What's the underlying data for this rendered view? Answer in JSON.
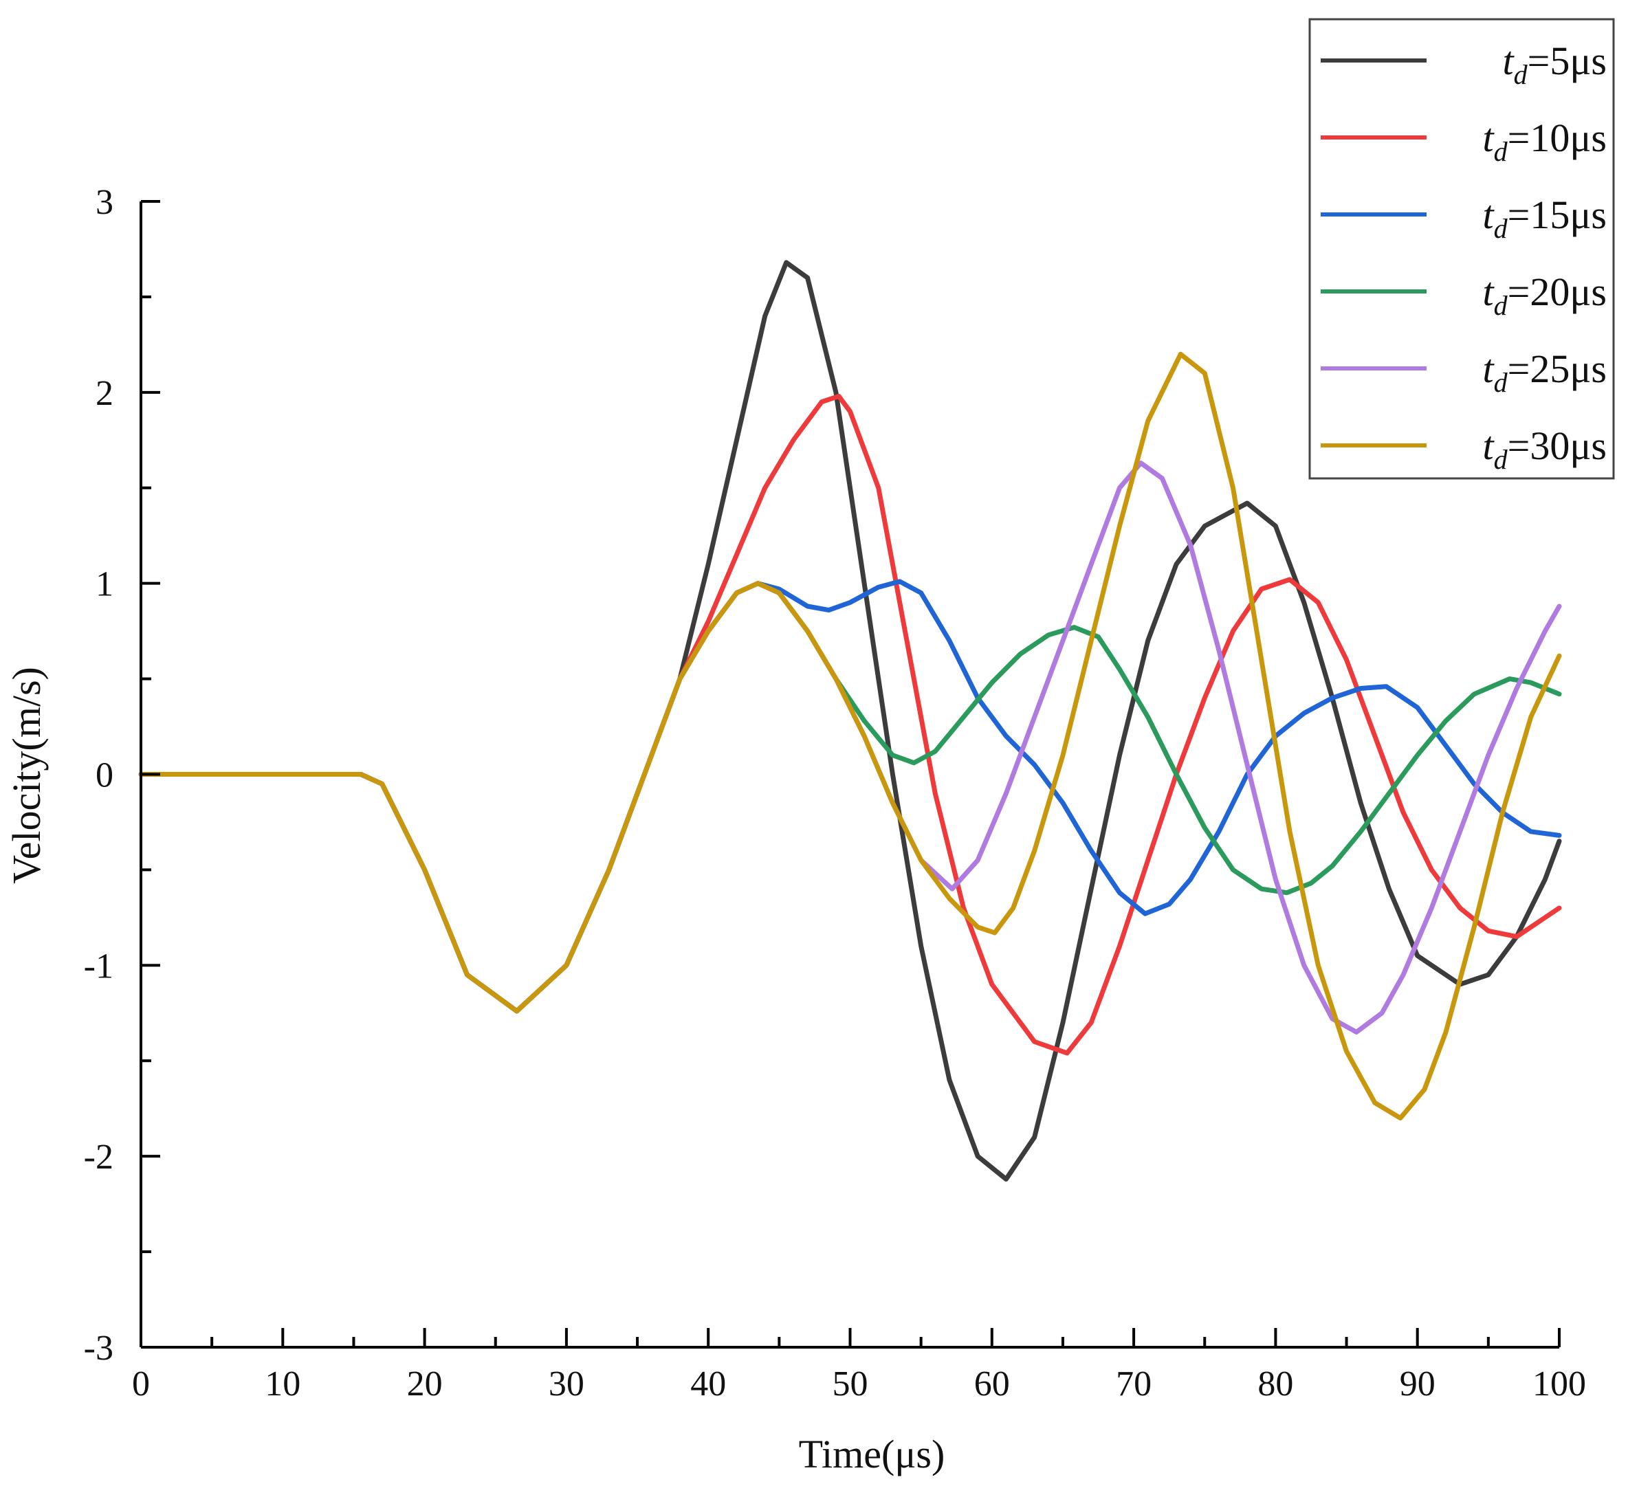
{
  "chart_data": {
    "type": "line",
    "title": "",
    "xlabel": "Time(μs)",
    "ylabel": "Velocity(m/s)",
    "xlim": [
      0,
      100
    ],
    "ylim": [
      -3,
      3
    ],
    "xticks": [
      0,
      10,
      20,
      30,
      40,
      50,
      60,
      70,
      80,
      90,
      100
    ],
    "xtick_labels": [
      "0",
      "10",
      "20",
      "30",
      "40",
      "50",
      "60",
      "70",
      "80",
      "90",
      "100"
    ],
    "yticks": [
      -3,
      -2,
      -1,
      0,
      1,
      2,
      3
    ],
    "ytick_labels": [
      "-3",
      "-2",
      "-1",
      "0",
      "1",
      "2",
      "3"
    ],
    "grid": false,
    "legend_position": "top-right",
    "series": [
      {
        "name": "td=5μs",
        "legend_main": "t",
        "legend_sub": "d",
        "legend_rest": "=5μs",
        "color": "#3c3c3c",
        "points": [
          [
            0,
            0
          ],
          [
            15.5,
            0
          ],
          [
            17,
            -0.05
          ],
          [
            20,
            -0.5
          ],
          [
            23,
            -1.05
          ],
          [
            26.5,
            -1.24
          ],
          [
            30,
            -1.0
          ],
          [
            33,
            -0.5
          ],
          [
            36,
            0.1
          ],
          [
            38,
            0.5
          ],
          [
            40,
            1.1
          ],
          [
            42,
            1.75
          ],
          [
            44,
            2.4
          ],
          [
            45.5,
            2.68
          ],
          [
            47,
            2.6
          ],
          [
            49,
            2.0
          ],
          [
            51,
            1.0
          ],
          [
            53,
            0
          ],
          [
            55,
            -0.9
          ],
          [
            57,
            -1.6
          ],
          [
            59,
            -2.0
          ],
          [
            61,
            -2.12
          ],
          [
            63,
            -1.9
          ],
          [
            65,
            -1.3
          ],
          [
            67,
            -0.6
          ],
          [
            69,
            0.1
          ],
          [
            71,
            0.7
          ],
          [
            73,
            1.1
          ],
          [
            75,
            1.3
          ],
          [
            78,
            1.42
          ],
          [
            80,
            1.3
          ],
          [
            82,
            0.9
          ],
          [
            84,
            0.4
          ],
          [
            86,
            -0.15
          ],
          [
            88,
            -0.6
          ],
          [
            90,
            -0.95
          ],
          [
            93,
            -1.1
          ],
          [
            95,
            -1.05
          ],
          [
            97,
            -0.85
          ],
          [
            99,
            -0.55
          ],
          [
            100,
            -0.35
          ]
        ]
      },
      {
        "name": "td=10μs",
        "legend_main": "t",
        "legend_sub": "d",
        "legend_rest": "=10μs",
        "color": "#ef3a3c",
        "points": [
          [
            0,
            0
          ],
          [
            15.5,
            0
          ],
          [
            17,
            -0.05
          ],
          [
            20,
            -0.5
          ],
          [
            23,
            -1.05
          ],
          [
            26.5,
            -1.24
          ],
          [
            30,
            -1.0
          ],
          [
            33,
            -0.5
          ],
          [
            36,
            0.1
          ],
          [
            38,
            0.5
          ],
          [
            40,
            0.8
          ],
          [
            42,
            1.15
          ],
          [
            44,
            1.5
          ],
          [
            46,
            1.75
          ],
          [
            48,
            1.95
          ],
          [
            49.2,
            1.98
          ],
          [
            50,
            1.9
          ],
          [
            52,
            1.5
          ],
          [
            54,
            0.7
          ],
          [
            56,
            -0.1
          ],
          [
            58,
            -0.7
          ],
          [
            60,
            -1.1
          ],
          [
            63,
            -1.4
          ],
          [
            65.3,
            -1.46
          ],
          [
            67,
            -1.3
          ],
          [
            69,
            -0.9
          ],
          [
            71,
            -0.45
          ],
          [
            73,
            0
          ],
          [
            75,
            0.4
          ],
          [
            77,
            0.75
          ],
          [
            79,
            0.97
          ],
          [
            81,
            1.02
          ],
          [
            83,
            0.9
          ],
          [
            85,
            0.6
          ],
          [
            87,
            0.2
          ],
          [
            89,
            -0.2
          ],
          [
            91,
            -0.5
          ],
          [
            93,
            -0.7
          ],
          [
            95,
            -0.82
          ],
          [
            97,
            -0.85
          ],
          [
            99,
            -0.75
          ],
          [
            100,
            -0.7
          ]
        ]
      },
      {
        "name": "td=15μs",
        "legend_main": "t",
        "legend_sub": "d",
        "legend_rest": "=15μs",
        "color": "#1f65d6",
        "points": [
          [
            0,
            0
          ],
          [
            15.5,
            0
          ],
          [
            17,
            -0.05
          ],
          [
            20,
            -0.5
          ],
          [
            23,
            -1.05
          ],
          [
            26.5,
            -1.24
          ],
          [
            30,
            -1.0
          ],
          [
            33,
            -0.5
          ],
          [
            36,
            0.1
          ],
          [
            38,
            0.5
          ],
          [
            40,
            0.75
          ],
          [
            42,
            0.95
          ],
          [
            43.5,
            1.0
          ],
          [
            45,
            0.97
          ],
          [
            47,
            0.88
          ],
          [
            48.5,
            0.86
          ],
          [
            50,
            0.9
          ],
          [
            52,
            0.98
          ],
          [
            53.5,
            1.01
          ],
          [
            55,
            0.95
          ],
          [
            57,
            0.7
          ],
          [
            59,
            0.4
          ],
          [
            61,
            0.2
          ],
          [
            63,
            0.05
          ],
          [
            65,
            -0.15
          ],
          [
            67,
            -0.4
          ],
          [
            69,
            -0.62
          ],
          [
            70.8,
            -0.73
          ],
          [
            72.5,
            -0.68
          ],
          [
            74,
            -0.55
          ],
          [
            76,
            -0.3
          ],
          [
            78,
            0
          ],
          [
            80,
            0.2
          ],
          [
            82,
            0.32
          ],
          [
            84,
            0.4
          ],
          [
            86,
            0.45
          ],
          [
            87.8,
            0.46
          ],
          [
            90,
            0.35
          ],
          [
            92,
            0.15
          ],
          [
            94,
            -0.05
          ],
          [
            96,
            -0.2
          ],
          [
            98,
            -0.3
          ],
          [
            100,
            -0.32
          ]
        ]
      },
      {
        "name": "td=20μs",
        "legend_main": "t",
        "legend_sub": "d",
        "legend_rest": "=20μs",
        "color": "#2a9b5c",
        "points": [
          [
            0,
            0
          ],
          [
            15.5,
            0
          ],
          [
            17,
            -0.05
          ],
          [
            20,
            -0.5
          ],
          [
            23,
            -1.05
          ],
          [
            26.5,
            -1.24
          ],
          [
            30,
            -1.0
          ],
          [
            33,
            -0.5
          ],
          [
            36,
            0.1
          ],
          [
            38,
            0.5
          ],
          [
            40,
            0.75
          ],
          [
            42,
            0.95
          ],
          [
            43.5,
            1.0
          ],
          [
            45,
            0.95
          ],
          [
            47,
            0.75
          ],
          [
            49,
            0.5
          ],
          [
            51,
            0.28
          ],
          [
            53,
            0.1
          ],
          [
            54.5,
            0.06
          ],
          [
            56,
            0.12
          ],
          [
            58,
            0.3
          ],
          [
            60,
            0.48
          ],
          [
            62,
            0.63
          ],
          [
            64,
            0.73
          ],
          [
            65.8,
            0.77
          ],
          [
            67.5,
            0.72
          ],
          [
            69,
            0.55
          ],
          [
            71,
            0.3
          ],
          [
            73,
            0
          ],
          [
            75,
            -0.28
          ],
          [
            77,
            -0.5
          ],
          [
            79,
            -0.6
          ],
          [
            80.8,
            -0.62
          ],
          [
            82.5,
            -0.57
          ],
          [
            84,
            -0.48
          ],
          [
            86,
            -0.3
          ],
          [
            88,
            -0.1
          ],
          [
            90,
            0.1
          ],
          [
            92,
            0.28
          ],
          [
            94,
            0.42
          ],
          [
            96.5,
            0.5
          ],
          [
            98,
            0.48
          ],
          [
            100,
            0.42
          ]
        ]
      },
      {
        "name": "td=25μs",
        "legend_main": "t",
        "legend_sub": "d",
        "legend_rest": "=25μs",
        "color": "#b07be0",
        "points": [
          [
            0,
            0
          ],
          [
            15.5,
            0
          ],
          [
            17,
            -0.05
          ],
          [
            20,
            -0.5
          ],
          [
            23,
            -1.05
          ],
          [
            26.5,
            -1.24
          ],
          [
            30,
            -1.0
          ],
          [
            33,
            -0.5
          ],
          [
            36,
            0.1
          ],
          [
            38,
            0.5
          ],
          [
            40,
            0.75
          ],
          [
            42,
            0.95
          ],
          [
            43.5,
            1.0
          ],
          [
            45,
            0.95
          ],
          [
            47,
            0.75
          ],
          [
            49,
            0.5
          ],
          [
            51,
            0.2
          ],
          [
            53,
            -0.15
          ],
          [
            55,
            -0.45
          ],
          [
            57.2,
            -0.6
          ],
          [
            59,
            -0.45
          ],
          [
            61,
            -0.1
          ],
          [
            63,
            0.3
          ],
          [
            65,
            0.7
          ],
          [
            67,
            1.1
          ],
          [
            69,
            1.5
          ],
          [
            70.5,
            1.63
          ],
          [
            72,
            1.55
          ],
          [
            74,
            1.2
          ],
          [
            76,
            0.65
          ],
          [
            78,
            0.05
          ],
          [
            80,
            -0.55
          ],
          [
            82,
            -1.0
          ],
          [
            84,
            -1.28
          ],
          [
            85.7,
            -1.35
          ],
          [
            87.5,
            -1.25
          ],
          [
            89,
            -1.05
          ],
          [
            91,
            -0.7
          ],
          [
            93,
            -0.3
          ],
          [
            95,
            0.1
          ],
          [
            97,
            0.45
          ],
          [
            99,
            0.75
          ],
          [
            100,
            0.88
          ]
        ]
      },
      {
        "name": "td=30μs",
        "legend_main": "t",
        "legend_sub": "d",
        "legend_rest": "=30μs",
        "color": "#c9970c",
        "points": [
          [
            0,
            0
          ],
          [
            15.5,
            0
          ],
          [
            17,
            -0.05
          ],
          [
            20,
            -0.5
          ],
          [
            23,
            -1.05
          ],
          [
            26.5,
            -1.24
          ],
          [
            30,
            -1.0
          ],
          [
            33,
            -0.5
          ],
          [
            36,
            0.1
          ],
          [
            38,
            0.5
          ],
          [
            40,
            0.75
          ],
          [
            42,
            0.95
          ],
          [
            43.5,
            1.0
          ],
          [
            45,
            0.95
          ],
          [
            47,
            0.75
          ],
          [
            49,
            0.5
          ],
          [
            51,
            0.2
          ],
          [
            53,
            -0.15
          ],
          [
            55,
            -0.45
          ],
          [
            57,
            -0.65
          ],
          [
            59,
            -0.8
          ],
          [
            60.2,
            -0.83
          ],
          [
            61.5,
            -0.7
          ],
          [
            63,
            -0.4
          ],
          [
            65,
            0.1
          ],
          [
            67,
            0.7
          ],
          [
            69,
            1.3
          ],
          [
            71,
            1.85
          ],
          [
            73.3,
            2.2
          ],
          [
            75,
            2.1
          ],
          [
            77,
            1.5
          ],
          [
            79,
            0.6
          ],
          [
            81,
            -0.3
          ],
          [
            83,
            -1.0
          ],
          [
            85,
            -1.45
          ],
          [
            87,
            -1.72
          ],
          [
            88.8,
            -1.8
          ],
          [
            90.5,
            -1.65
          ],
          [
            92,
            -1.35
          ],
          [
            94,
            -0.8
          ],
          [
            96,
            -0.2
          ],
          [
            98,
            0.3
          ],
          [
            100,
            0.62
          ]
        ]
      }
    ]
  }
}
